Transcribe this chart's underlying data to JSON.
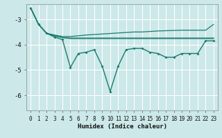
{
  "xlabel": "Humidex (Indice chaleur)",
  "ylabel": "",
  "xlim": [
    -0.5,
    23.5
  ],
  "ylim": [
    -6.6,
    -2.4
  ],
  "yticks": [
    -6,
    -5,
    -4,
    -3
  ],
  "xticks": [
    0,
    1,
    2,
    3,
    4,
    5,
    6,
    7,
    8,
    9,
    10,
    11,
    12,
    13,
    14,
    15,
    16,
    17,
    18,
    19,
    20,
    21,
    22,
    23
  ],
  "background_color": "#cce8e8",
  "grid_color": "#ffffff",
  "line_color": "#1a7a6e",
  "line1_x": [
    0,
    1,
    2,
    3,
    4,
    5,
    6,
    7,
    8,
    9,
    10,
    11,
    12,
    13,
    14,
    15,
    16,
    17,
    18,
    19,
    20,
    21,
    22,
    23
  ],
  "line1_y": [
    -2.55,
    -3.2,
    -3.55,
    -3.7,
    -3.8,
    -4.9,
    -4.35,
    -4.3,
    -4.2,
    -4.85,
    -5.85,
    -4.85,
    -4.2,
    -4.15,
    -4.15,
    -4.3,
    -4.35,
    -4.5,
    -4.5,
    -4.35,
    -4.35,
    -4.35,
    -3.85,
    -3.85
  ],
  "line2_x": [
    0,
    1,
    2,
    3,
    4,
    5,
    6,
    7,
    8,
    9,
    10,
    11,
    12,
    13,
    14,
    15,
    16,
    17,
    18,
    19,
    20,
    21,
    22,
    23
  ],
  "line2_y": [
    -2.55,
    -3.2,
    -3.55,
    -3.62,
    -3.68,
    -3.68,
    -3.65,
    -3.62,
    -3.6,
    -3.58,
    -3.56,
    -3.54,
    -3.52,
    -3.5,
    -3.5,
    -3.48,
    -3.46,
    -3.45,
    -3.44,
    -3.43,
    -3.43,
    -3.43,
    -3.43,
    -3.2
  ],
  "line3_x": [
    0,
    1,
    2,
    3,
    4,
    5,
    6,
    7,
    8,
    9,
    10,
    11,
    12,
    13,
    14,
    15,
    16,
    17,
    18,
    19,
    20,
    21,
    22,
    23
  ],
  "line3_y": [
    -2.55,
    -3.2,
    -3.55,
    -3.65,
    -3.72,
    -3.74,
    -3.74,
    -3.74,
    -3.74,
    -3.74,
    -3.74,
    -3.74,
    -3.74,
    -3.74,
    -3.74,
    -3.74,
    -3.74,
    -3.74,
    -3.74,
    -3.74,
    -3.74,
    -3.74,
    -3.74,
    -3.74
  ],
  "line4_x": [
    0,
    1,
    2,
    3,
    4,
    5,
    6,
    7,
    8,
    9,
    10,
    11,
    12,
    13,
    14,
    15,
    16,
    17,
    18,
    19,
    20,
    21,
    22,
    23
  ],
  "line4_y": [
    -2.55,
    -3.2,
    -3.55,
    -3.65,
    -3.72,
    -3.76,
    -3.76,
    -3.76,
    -3.76,
    -3.76,
    -3.76,
    -3.76,
    -3.76,
    -3.76,
    -3.76,
    -3.76,
    -3.76,
    -3.76,
    -3.76,
    -3.76,
    -3.76,
    -3.76,
    -3.76,
    -3.76
  ]
}
